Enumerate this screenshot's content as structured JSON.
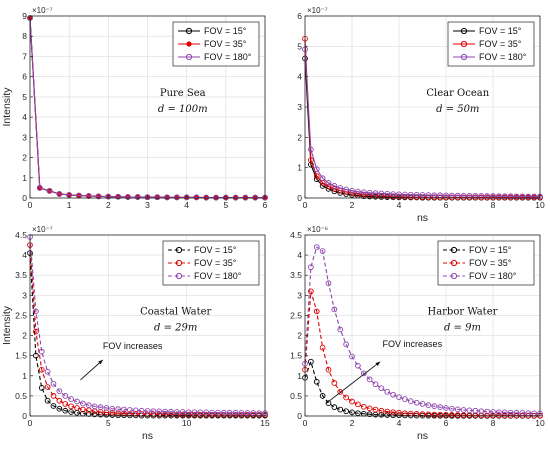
{
  "chart_data": [
    {
      "type": "line",
      "ylabel": "Intensity",
      "xlabel": "",
      "y_exponent": "×10⁻⁷",
      "xlim": [
        0,
        6
      ],
      "ylim": [
        0,
        9
      ],
      "xticks": [
        0,
        1,
        2,
        3,
        4,
        5,
        6
      ],
      "yticks": [
        0,
        1,
        2,
        3,
        4,
        5,
        6,
        7,
        8,
        9
      ],
      "grid": true,
      "legend": "top-right",
      "dashed": false,
      "annotation_title": "Pure Sea",
      "annotation_d": "d = 100m",
      "x": [
        0,
        0.25,
        0.5,
        0.75,
        1,
        1.25,
        1.5,
        1.75,
        2,
        2.25,
        2.5,
        2.75,
        3,
        3.25,
        3.5,
        3.75,
        4,
        4.25,
        4.5,
        4.75,
        5,
        5.25,
        5.5,
        5.75,
        6
      ],
      "series": [
        {
          "name": "FOV = 15°",
          "color": "#000000",
          "marker": "open-circle",
          "values": [
            8.9,
            0.5,
            0.35,
            0.2,
            0.15,
            0.12,
            0.1,
            0.08,
            0.07,
            0.06,
            0.05,
            0.05,
            0.04,
            0.04,
            0.03,
            0.03,
            0.03,
            0.03,
            0.02,
            0.02,
            0.02,
            0.02,
            0.02,
            0.02,
            0.02
          ]
        },
        {
          "name": "FOV = 35°",
          "color": "#dd0000",
          "marker": "filled-dot",
          "values": [
            8.9,
            0.5,
            0.35,
            0.2,
            0.15,
            0.12,
            0.1,
            0.08,
            0.07,
            0.06,
            0.05,
            0.05,
            0.04,
            0.04,
            0.03,
            0.03,
            0.03,
            0.03,
            0.02,
            0.02,
            0.02,
            0.02,
            0.02,
            0.02,
            0.02
          ]
        },
        {
          "name": "FOV = 180°",
          "color": "#8e44ad",
          "marker": "open-circle",
          "values": [
            8.9,
            0.5,
            0.35,
            0.2,
            0.15,
            0.12,
            0.1,
            0.08,
            0.07,
            0.06,
            0.05,
            0.05,
            0.04,
            0.04,
            0.03,
            0.03,
            0.03,
            0.03,
            0.02,
            0.02,
            0.02,
            0.02,
            0.02,
            0.02,
            0.02
          ]
        }
      ]
    },
    {
      "type": "line",
      "ylabel": "",
      "xlabel": "ns",
      "y_exponent": "×10⁻⁷",
      "xlim": [
        0,
        10
      ],
      "ylim": [
        0,
        6
      ],
      "xticks": [
        0,
        2,
        4,
        6,
        8,
        10
      ],
      "yticks": [
        0,
        1,
        2,
        3,
        4,
        5,
        6
      ],
      "grid": true,
      "legend": "top-right",
      "dashed": false,
      "annotation_title": "Clear Ocean",
      "annotation_d": "d = 50m",
      "x": [
        0,
        0.25,
        0.5,
        0.75,
        1,
        1.25,
        1.5,
        1.75,
        2,
        2.25,
        2.5,
        2.75,
        3,
        3.25,
        3.5,
        3.75,
        4,
        4.25,
        4.5,
        4.75,
        5,
        5.25,
        5.5,
        5.75,
        6,
        6.25,
        6.5,
        6.75,
        7,
        7.25,
        7.5,
        7.75,
        8,
        8.25,
        8.5,
        8.75,
        9,
        9.25,
        9.5,
        9.75,
        10
      ],
      "series": [
        {
          "name": "FOV = 15°",
          "color": "#000000",
          "marker": "open-circle",
          "values": [
            4.6,
            1.1,
            0.62,
            0.4,
            0.3,
            0.22,
            0.17,
            0.13,
            0.1,
            0.08,
            0.06,
            0.05,
            0.04,
            0.035,
            0.03,
            0.025,
            0.02,
            0.02,
            0.015,
            0.015,
            0.01,
            0.01,
            0.01,
            0.01,
            0.01,
            0.01,
            0.01,
            0.01,
            0.01,
            0.01,
            0.01,
            0.01,
            0.01,
            0.01,
            0.01,
            0.01,
            0.01,
            0.01,
            0.01,
            0.01,
            0.01
          ]
        },
        {
          "name": "FOV = 35°",
          "color": "#dd0000",
          "marker": "open-circle",
          "values": [
            5.25,
            1.25,
            0.72,
            0.5,
            0.38,
            0.3,
            0.24,
            0.2,
            0.16,
            0.13,
            0.11,
            0.09,
            0.08,
            0.07,
            0.06,
            0.05,
            0.045,
            0.04,
            0.035,
            0.03,
            0.03,
            0.025,
            0.025,
            0.02,
            0.02,
            0.02,
            0.02,
            0.02,
            0.02,
            0.02,
            0.02,
            0.02,
            0.02,
            0.02,
            0.02,
            0.02,
            0.02,
            0.02,
            0.02,
            0.02,
            0.02
          ]
        },
        {
          "name": "FOV = 180°",
          "color": "#8e44ad",
          "marker": "open-circle",
          "values": [
            4.9,
            1.6,
            0.95,
            0.65,
            0.5,
            0.4,
            0.33,
            0.28,
            0.24,
            0.21,
            0.19,
            0.17,
            0.16,
            0.15,
            0.14,
            0.13,
            0.12,
            0.115,
            0.11,
            0.105,
            0.1,
            0.095,
            0.09,
            0.09,
            0.085,
            0.08,
            0.08,
            0.075,
            0.075,
            0.07,
            0.07,
            0.065,
            0.065,
            0.06,
            0.06,
            0.06,
            0.055,
            0.055,
            0.05,
            0.05,
            0.05
          ]
        }
      ]
    },
    {
      "type": "line",
      "ylabel": "Intensity",
      "xlabel": "ns",
      "y_exponent": "×10⁻⁷",
      "xlim": [
        0,
        15
      ],
      "ylim": [
        0,
        4.5
      ],
      "xticks": [
        0,
        5,
        10,
        15
      ],
      "yticks": [
        0,
        0.5,
        1,
        1.5,
        2,
        2.5,
        3,
        3.5,
        4,
        4.5
      ],
      "grid": true,
      "legend": "top-right",
      "dashed": true,
      "annotation_title": "Coastal Water",
      "annotation_d": "d = 29m",
      "arrow_text": "FOV increases",
      "x": [
        0,
        0.375,
        0.75,
        1.125,
        1.5,
        1.875,
        2.25,
        2.625,
        3,
        3.375,
        3.75,
        4.125,
        4.5,
        4.875,
        5.25,
        5.625,
        6,
        6.375,
        6.75,
        7.125,
        7.5,
        7.875,
        8.25,
        8.625,
        9,
        9.375,
        9.75,
        10.125,
        10.5,
        10.875,
        11.25,
        11.625,
        12,
        12.375,
        12.75,
        13.125,
        13.5,
        13.875,
        14.25,
        14.625,
        15
      ],
      "series": [
        {
          "name": "FOV = 15°",
          "color": "#000000",
          "marker": "open-circle",
          "values": [
            4.05,
            1.5,
            0.7,
            0.38,
            0.25,
            0.18,
            0.13,
            0.1,
            0.08,
            0.06,
            0.05,
            0.04,
            0.035,
            0.03,
            0.025,
            0.02,
            0.02,
            0.015,
            0.015,
            0.01,
            0.01,
            0.01,
            0.01,
            0.01,
            0.01,
            0.01,
            0.01,
            0.01,
            0.01,
            0.01,
            0.01,
            0.01,
            0.01,
            0.01,
            0.01,
            0.01,
            0.01,
            0.01,
            0.01,
            0.01,
            0.01
          ]
        },
        {
          "name": "FOV = 35°",
          "color": "#dd0000",
          "marker": "open-circle",
          "values": [
            4.25,
            2.1,
            1.15,
            0.72,
            0.5,
            0.38,
            0.3,
            0.24,
            0.2,
            0.16,
            0.14,
            0.12,
            0.1,
            0.09,
            0.08,
            0.07,
            0.065,
            0.06,
            0.055,
            0.05,
            0.045,
            0.045,
            0.04,
            0.04,
            0.04,
            0.035,
            0.035,
            0.035,
            0.03,
            0.03,
            0.03,
            0.03,
            0.03,
            0.03,
            0.03,
            0.03,
            0.03,
            0.03,
            0.03,
            0.03,
            0.03
          ]
        },
        {
          "name": "FOV = 180°",
          "color": "#8e44ad",
          "marker": "open-circle",
          "values": [
            4.45,
            2.6,
            1.6,
            1.1,
            0.8,
            0.62,
            0.5,
            0.42,
            0.36,
            0.31,
            0.27,
            0.24,
            0.22,
            0.2,
            0.18,
            0.17,
            0.16,
            0.15,
            0.14,
            0.13,
            0.125,
            0.12,
            0.115,
            0.11,
            0.105,
            0.1,
            0.1,
            0.095,
            0.095,
            0.09,
            0.09,
            0.085,
            0.085,
            0.08,
            0.08,
            0.08,
            0.075,
            0.075,
            0.075,
            0.07,
            0.07
          ]
        }
      ]
    },
    {
      "type": "line",
      "ylabel": "",
      "xlabel": "ns",
      "y_exponent": "×10⁻⁶",
      "xlim": [
        0,
        10
      ],
      "ylim": [
        0,
        4.5
      ],
      "xticks": [
        0,
        2,
        4,
        6,
        8,
        10
      ],
      "yticks": [
        0,
        0.5,
        1,
        1.5,
        2,
        2.5,
        3,
        3.5,
        4,
        4.5
      ],
      "grid": true,
      "legend": "top-right",
      "dashed": true,
      "annotation_title": "Harbor Water",
      "annotation_d": "d = 9m",
      "arrow_text": "FOV increases",
      "x": [
        0,
        0.25,
        0.5,
        0.75,
        1,
        1.25,
        1.5,
        1.75,
        2,
        2.25,
        2.5,
        2.75,
        3,
        3.25,
        3.5,
        3.75,
        4,
        4.25,
        4.5,
        4.75,
        5,
        5.25,
        5.5,
        5.75,
        6,
        6.25,
        6.5,
        6.75,
        7,
        7.25,
        7.5,
        7.75,
        8,
        8.25,
        8.5,
        8.75,
        9,
        9.25,
        9.5,
        9.75,
        10
      ],
      "series": [
        {
          "name": "FOV = 15°",
          "color": "#000000",
          "marker": "open-circle",
          "values": [
            0.95,
            1.35,
            0.85,
            0.5,
            0.32,
            0.22,
            0.16,
            0.12,
            0.09,
            0.07,
            0.055,
            0.045,
            0.035,
            0.03,
            0.025,
            0.02,
            0.018,
            0.015,
            0.012,
            0.01,
            0.01,
            0.008,
            0.008,
            0.006,
            0.006,
            0.005,
            0.005,
            0.005,
            0.004,
            0.004,
            0.004,
            0.003,
            0.003,
            0.003,
            0.003,
            0.003,
            0.003,
            0.003,
            0.003,
            0.003,
            0.003
          ]
        },
        {
          "name": "FOV = 35°",
          "color": "#dd0000",
          "marker": "open-circle",
          "values": [
            1.15,
            3.1,
            2.6,
            1.7,
            1.15,
            0.82,
            0.6,
            0.46,
            0.36,
            0.29,
            0.23,
            0.19,
            0.16,
            0.13,
            0.11,
            0.095,
            0.08,
            0.07,
            0.06,
            0.052,
            0.046,
            0.04,
            0.036,
            0.032,
            0.028,
            0.025,
            0.022,
            0.02,
            0.018,
            0.016,
            0.015,
            0.014,
            0.013,
            0.012,
            0.011,
            0.01,
            0.01,
            0.009,
            0.009,
            0.008,
            0.008
          ]
        },
        {
          "name": "FOV = 180°",
          "color": "#8e44ad",
          "marker": "open-circle",
          "values": [
            1.3,
            3.7,
            4.2,
            4.1,
            3.3,
            2.65,
            2.15,
            1.78,
            1.48,
            1.25,
            1.06,
            0.91,
            0.79,
            0.69,
            0.6,
            0.53,
            0.47,
            0.42,
            0.37,
            0.33,
            0.3,
            0.27,
            0.245,
            0.22,
            0.2,
            0.18,
            0.165,
            0.15,
            0.14,
            0.13,
            0.12,
            0.11,
            0.1,
            0.095,
            0.09,
            0.085,
            0.08,
            0.075,
            0.07,
            0.065,
            0.06
          ]
        }
      ]
    }
  ]
}
